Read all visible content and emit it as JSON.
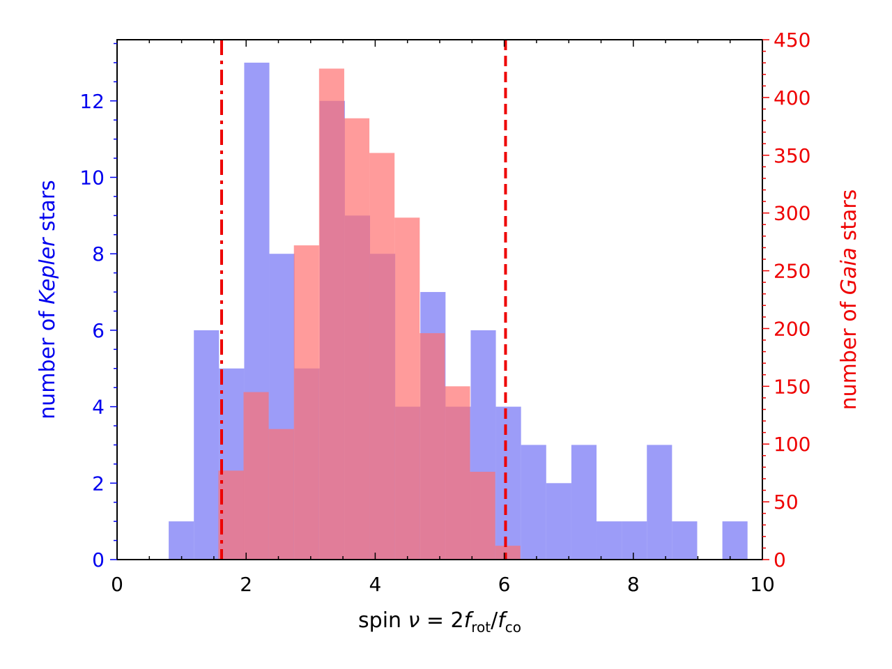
{
  "chart_data": {
    "type": "bar",
    "title": "",
    "xlabel": {
      "prefix": "spin ",
      "nu": "ν",
      "eq": " = 2",
      "f1": "f",
      "sub1": "rot",
      "slash": "/",
      "f2": "f",
      "sub2": "co"
    },
    "ylabel_left": {
      "prefix": "number of ",
      "emph": "Kepler",
      "suffix": " stars"
    },
    "ylabel_right": {
      "prefix": "number of ",
      "emph": "Gaia",
      "suffix": " stars"
    },
    "xlim": [
      0,
      10
    ],
    "ylim_left": [
      0,
      13.6
    ],
    "ylim_right": [
      0,
      450
    ],
    "x_ticks": [
      "0",
      "2",
      "4",
      "6",
      "8",
      "10"
    ],
    "y_left_ticks": [
      "0",
      "2",
      "4",
      "6",
      "8",
      "10",
      "12"
    ],
    "y_right_ticks": [
      "0",
      "50",
      "100",
      "150",
      "200",
      "250",
      "300",
      "350",
      "400",
      "450"
    ],
    "series": [
      {
        "name": "Kepler",
        "axis": "left",
        "color": "#7b7bf5",
        "bin_edges": [
          0.8,
          1.19,
          1.58,
          1.97,
          2.36,
          2.75,
          3.14,
          3.53,
          3.92,
          4.31,
          4.7,
          5.09,
          5.48,
          5.87,
          6.26,
          6.65,
          7.04,
          7.43,
          7.82,
          8.21,
          8.6,
          8.99,
          9.38,
          9.77
        ],
        "values": [
          1,
          6,
          5,
          13,
          8,
          5,
          12,
          9,
          8,
          4,
          7,
          4,
          6,
          4,
          3,
          2,
          3,
          1,
          1,
          3,
          1,
          0,
          1
        ]
      },
      {
        "name": "Gaia",
        "axis": "right",
        "color": "#ff7070",
        "bin_edges": [
          1.57,
          1.96,
          2.35,
          2.74,
          3.13,
          3.52,
          3.91,
          4.3,
          4.69,
          5.08,
          5.47,
          5.86,
          6.25
        ],
        "values": [
          77,
          145,
          113,
          272,
          425,
          382,
          352,
          296,
          196,
          150,
          76,
          12
        ]
      }
    ],
    "vlines": [
      {
        "x": 1.62,
        "style": "dashdot",
        "color": "#ee0000"
      },
      {
        "x": 6.02,
        "style": "dashed",
        "color": "#ee0000"
      }
    ],
    "colors": {
      "left_axis": "#0000ee",
      "right_axis": "#ee0000",
      "axis": "#000000"
    }
  }
}
